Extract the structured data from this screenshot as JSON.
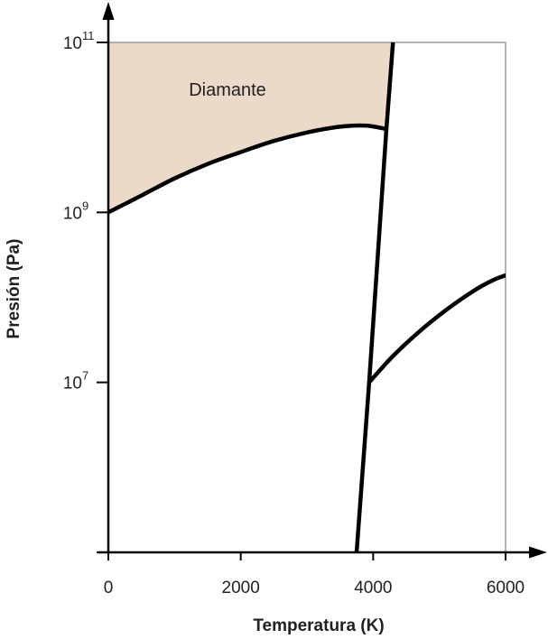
{
  "chart_data": {
    "type": "line",
    "title": "",
    "xlabel": "Temperatura (K)",
    "ylabel": "Presión (Pa)",
    "x_ticks": [
      "0",
      "2000",
      "4000",
      "6000"
    ],
    "y_ticks": [
      {
        "base": "10",
        "exp": "11"
      },
      {
        "base": "10",
        "exp": "9"
      },
      {
        "base": "10",
        "exp": "7"
      }
    ],
    "xlim": [
      0,
      6000
    ],
    "y_scale": "log",
    "ylim": [
      100000,
      100000000000
    ],
    "grid": false,
    "region_label": "Diamante",
    "colors": {
      "region_fill": "#ebd9c9",
      "curves": "#000000",
      "frame": "#999999",
      "axes": "#000000"
    },
    "series": [
      {
        "x": [
          0,
          500,
          1000,
          1500,
          2000,
          2500,
          3000,
          3500,
          3900,
          4200
        ],
        "y": [
          1000000000,
          1580000000,
          2510000000,
          3710000000,
          5130000000,
          6920000000,
          8710000000,
          10200000000,
          10500000000,
          9550000000
        ]
      },
      {
        "x": [
          3750,
          3940,
          4200,
          4300
        ],
        "y": [
          100000,
          10000000,
          9550000000,
          100000000000
        ]
      },
      {
        "x": [
          3940,
          4300,
          4700,
          5100,
          5500,
          5800,
          6000
        ],
        "y": [
          10000000,
          20400000,
          39800000,
          70800000,
          117000000,
          158000000,
          182000000
        ]
      }
    ]
  }
}
